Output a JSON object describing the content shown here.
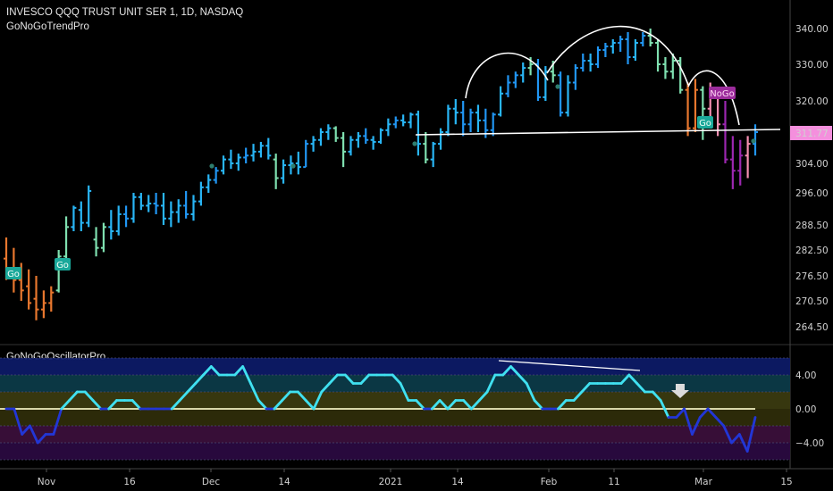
{
  "header": {
    "symbol_line": "INVESCO QQQ TRUST UNIT SER 1, 1D, NASDAQ",
    "indicator_name": "GoNoGoTrendPro"
  },
  "oscillator": {
    "name": "GoNoGoOscillatorPro"
  },
  "colors": {
    "background": "#000000",
    "go_strong": "#2196f3",
    "go": "#29b6f6",
    "go_weak": "#7fe0b0",
    "nogo": "#e8772e",
    "nogo_weak": "#f48fb1",
    "nogo_strong": "#9c27b0",
    "osc_bull": "#40e0f0",
    "osc_bear": "#2236d6",
    "price_tag": "#f48fdd"
  },
  "price_tag": "311.77",
  "x_axis_labels": [
    "Nov",
    "16",
    "Dec",
    "14",
    "2021",
    "14",
    "Feb",
    "11",
    "Mar",
    "15"
  ],
  "labels": [
    {
      "text": "Go",
      "kind": "go"
    },
    {
      "text": "Go",
      "kind": "go"
    },
    {
      "text": "NoGo",
      "kind": "nogo"
    },
    {
      "text": "Go",
      "kind": "go"
    }
  ],
  "chart_data": [
    {
      "type": "candlestick",
      "title": "INVESCO QQQ TRUST UNIT SER 1, 1D, NASDAQ",
      "y_ticks": [
        340.0,
        330.0,
        320.0,
        304.0,
        296.0,
        288.5,
        282.5,
        276.5,
        270.5,
        264.5
      ],
      "y_tick_labels": [
        "340.00",
        "330.00",
        "320.00",
        "304.00",
        "296.00",
        "288.50",
        "282.50",
        "276.50",
        "270.50",
        "264.50"
      ],
      "x_labels": [
        "Nov",
        "16",
        "Dec",
        "14",
        "2021",
        "14",
        "Feb",
        "11",
        "Mar",
        "15"
      ],
      "last_price": 311.77,
      "series": [
        {
          "name": "QQQ daily OHLC",
          "approx_ohlc": [
            [
              280.5,
              285.5,
              275.5,
              278
            ],
            [
              278,
              283,
              272.5,
              275.5
            ],
            [
              275.5,
              279.5,
              270.5,
              273
            ],
            [
              274,
              278,
              268.5,
              270
            ],
            [
              271,
              276.5,
              266,
              268.5
            ],
            [
              268.5,
              273,
              266.5,
              270
            ],
            [
              270,
              274,
              268,
              272.5
            ],
            [
              273,
              282.5,
              272.5,
              281
            ],
            [
              281,
              290.5,
              280.5,
              288
            ],
            [
              288,
              293,
              287,
              292.5
            ],
            [
              292,
              294,
              287,
              289
            ],
            [
              289,
              298,
              288,
              296.5
            ],
            [
              285,
              288,
              281,
              283
            ],
            [
              283,
              289,
              282,
              288
            ],
            [
              288,
              292,
              285,
              287
            ],
            [
              287,
              293,
              286,
              291
            ],
            [
              291,
              293,
              288,
              290
            ],
            [
              290,
              296,
              289,
              295
            ],
            [
              295,
              296,
              292,
              293
            ],
            [
              293,
              295.5,
              291.5,
              293.5
            ],
            [
              293.5,
              296,
              291,
              293
            ],
            [
              293,
              296,
              288.5,
              290
            ],
            [
              290,
              294,
              288,
              291.5
            ],
            [
              291.5,
              294.5,
              289,
              293
            ],
            [
              293,
              296.5,
              290,
              291
            ],
            [
              291,
              295.5,
              289.5,
              294
            ],
            [
              294,
              299,
              293,
              297.5
            ],
            [
              297.5,
              301,
              296,
              299.5
            ],
            [
              299.5,
              303,
              298.5,
              302
            ],
            [
              302,
              306,
              301,
              305
            ],
            [
              305,
              307.5,
              302.5,
              304
            ],
            [
              304,
              306.5,
              302,
              305.5
            ],
            [
              305.5,
              308,
              304,
              306
            ],
            [
              306,
              309,
              304.5,
              307
            ],
            [
              307,
              309.5,
              305.5,
              308.5
            ],
            [
              308.5,
              310.5,
              305,
              306
            ],
            [
              305,
              306.5,
              297,
              300
            ],
            [
              300,
              305,
              298.5,
              303.5
            ],
            [
              303.5,
              306,
              301,
              304
            ],
            [
              304,
              307,
              301,
              303
            ],
            [
              303,
              310,
              303,
              309
            ],
            [
              309,
              311,
              307,
              310
            ],
            [
              310,
              313,
              308.5,
              312
            ],
            [
              312,
              314,
              310,
              313
            ],
            [
              313,
              313.5,
              309.5,
              310.5
            ],
            [
              310.5,
              312,
              303,
              307
            ],
            [
              307,
              311,
              306,
              310
            ],
            [
              310,
              312,
              308,
              311
            ],
            [
              311,
              313,
              309,
              310
            ],
            [
              310,
              311,
              307.5,
              309.5
            ],
            [
              309.5,
              313,
              309,
              312.5
            ],
            [
              312.5,
              315.5,
              311,
              314
            ],
            [
              314,
              316,
              313,
              315
            ],
            [
              315,
              316.5,
              313.5,
              314.5
            ],
            [
              314.5,
              317,
              313,
              316.5
            ],
            [
              316.5,
              317.5,
              306,
              309
            ],
            [
              309,
              312,
              304,
              305
            ],
            [
              305,
              309.5,
              303,
              309
            ],
            [
              309,
              313,
              307.5,
              312
            ],
            [
              312,
              319,
              311,
              318
            ],
            [
              318,
              320.5,
              314,
              317
            ],
            [
              317,
              320,
              311,
              314
            ],
            [
              314,
              318,
              312,
              317
            ],
            [
              317,
              319,
              312,
              315
            ],
            [
              315,
              318,
              310.5,
              312.5
            ],
            [
              312.5,
              317,
              311,
              316.5
            ],
            [
              316.5,
              324,
              316,
              322
            ],
            [
              322,
              327,
              321,
              325
            ],
            [
              325,
              328,
              323.5,
              327
            ],
            [
              327,
              330.5,
              325,
              329
            ],
            [
              329,
              332,
              327,
              330
            ],
            [
              330,
              331.5,
              320,
              321
            ],
            [
              321,
              329.5,
              320,
              328
            ],
            [
              328,
              331,
              325,
              327
            ],
            [
              327,
              328,
              316,
              317
            ],
            [
              317,
              327,
              316,
              325
            ],
            [
              325,
              330,
              323,
              329
            ],
            [
              329,
              333,
              328,
              331
            ],
            [
              331,
              333,
              328,
              330
            ],
            [
              330,
              335,
              329,
              334
            ],
            [
              334,
              336,
              332,
              335
            ],
            [
              335,
              337,
              333,
              336
            ],
            [
              336,
              338,
              333.5,
              337
            ],
            [
              337,
              339,
              330,
              332
            ],
            [
              332,
              337,
              331,
              336
            ],
            [
              336,
              339,
              335,
              338
            ],
            [
              338,
              340,
              335,
              336
            ],
            [
              336,
              337,
              328,
              330
            ],
            [
              330,
              332,
              326,
              328
            ],
            [
              328,
              333,
              326,
              331
            ],
            [
              331,
              332,
              322,
              323
            ],
            [
              323,
              325,
              311,
              313
            ],
            [
              313,
              326,
              312,
              323
            ],
            [
              323,
              324,
              310,
              318
            ],
            [
              318,
              325,
              316,
              322
            ],
            [
              322,
              322.5,
              311,
              314
            ],
            [
              314,
              320,
              304,
              305
            ],
            [
              305,
              311,
              297,
              302
            ],
            [
              302,
              310,
              298,
              306
            ],
            [
              306,
              311,
              300,
              309
            ],
            [
              309,
              314,
              306,
              312
            ]
          ]
        }
      ],
      "annotations": [
        "head-and-shoulders arcs",
        "neckline at approx 312"
      ]
    },
    {
      "type": "line",
      "title": "GoNoGoOscillatorPro",
      "y_ticks": [
        4.0,
        0.0,
        -4.0
      ],
      "y_tick_labels": [
        "4.00",
        "0.00",
        "−4.00"
      ],
      "series": [
        {
          "name": "GoNoGoOscillatorPro",
          "values": [
            0,
            0,
            -3,
            -2,
            -4,
            -3,
            -3,
            0,
            1,
            2,
            2,
            1,
            0,
            0,
            1,
            1,
            1,
            0,
            0,
            0,
            0,
            0,
            1,
            2,
            3,
            4,
            5,
            4,
            4,
            4,
            5,
            3,
            1,
            0,
            0,
            1,
            2,
            2,
            1,
            0,
            2,
            3,
            4,
            4,
            3,
            3,
            4,
            4,
            4,
            4,
            3,
            1,
            1,
            0,
            0,
            1,
            0,
            1,
            1,
            0,
            1,
            2,
            4,
            4,
            5,
            4,
            3,
            1,
            0,
            0,
            0,
            1,
            1,
            2,
            3,
            3,
            3,
            3,
            3,
            4,
            3,
            2,
            2,
            1,
            -1,
            -1,
            0,
            -3,
            -1,
            0,
            -1,
            -2,
            -4,
            -3,
            -5,
            -1
          ]
        }
      ],
      "bands": [
        {
          "from": 4,
          "to": 6,
          "meaning": "strong go"
        },
        {
          "from": 2,
          "to": 4,
          "meaning": "go"
        },
        {
          "from": 0,
          "to": 2,
          "meaning": "neutral"
        },
        {
          "from": -2,
          "to": 0,
          "meaning": "neutral"
        },
        {
          "from": -4,
          "to": -2,
          "meaning": "nogo"
        },
        {
          "from": -6,
          "to": -4,
          "meaning": "strong nogo"
        }
      ]
    }
  ]
}
